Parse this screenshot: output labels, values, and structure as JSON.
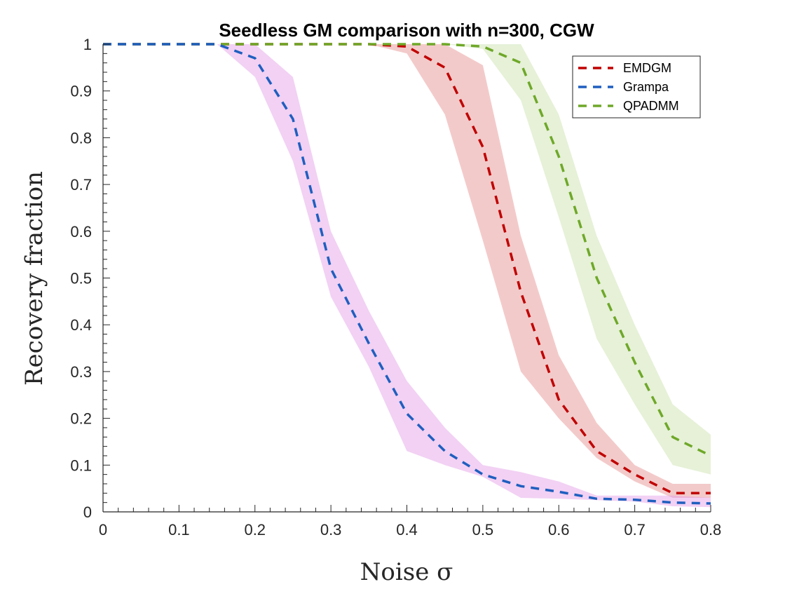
{
  "chart_data": {
    "type": "line",
    "title": "Seedless GM comparison with n=300, CGW",
    "xlabel": "Noise σ",
    "ylabel": "Recovery fraction",
    "xlim": [
      0,
      0.8
    ],
    "ylim": [
      0,
      1
    ],
    "x_ticks": [
      "0",
      "0.1",
      "0.2",
      "0.3",
      "0.4",
      "0.5",
      "0.6",
      "0.7",
      "0.8"
    ],
    "y_ticks": [
      "0",
      "0.1",
      "0.2",
      "0.3",
      "0.4",
      "0.5",
      "0.6",
      "0.7",
      "0.8",
      "0.9",
      "1"
    ],
    "grid": false,
    "legend_position": "top-right",
    "x": [
      0,
      0.05,
      0.1,
      0.15,
      0.2,
      0.25,
      0.3,
      0.35,
      0.4,
      0.45,
      0.5,
      0.55,
      0.6,
      0.65,
      0.7,
      0.75,
      0.8
    ],
    "series": [
      {
        "name": "EMDGM",
        "color": "#c00000",
        "band_color": "#e58a8a",
        "values": [
          1,
          1,
          1,
          1,
          1,
          1,
          1,
          1,
          0.995,
          0.95,
          0.78,
          0.47,
          0.24,
          0.13,
          0.08,
          0.04,
          0.04
        ],
        "lower": [
          1,
          1,
          1,
          1,
          1,
          1,
          1,
          1,
          0.98,
          0.85,
          0.58,
          0.3,
          0.2,
          0.115,
          0.065,
          0.03,
          0.03
        ],
        "upper": [
          1,
          1,
          1,
          1,
          1,
          1,
          1,
          1,
          1,
          1,
          0.955,
          0.59,
          0.335,
          0.19,
          0.1,
          0.06,
          0.06
        ]
      },
      {
        "name": "Grampa",
        "color": "#1f5fbf",
        "band_color": "#e29ae6",
        "values": [
          1,
          1,
          1,
          1,
          0.97,
          0.84,
          0.52,
          0.36,
          0.21,
          0.13,
          0.08,
          0.055,
          0.043,
          0.028,
          0.026,
          0.02,
          0.018
        ],
        "lower": [
          1,
          1,
          1,
          1,
          0.93,
          0.75,
          0.46,
          0.31,
          0.13,
          0.1,
          0.075,
          0.03,
          0.028,
          0.025,
          0.022,
          0.012,
          0.01
        ],
        "upper": [
          1,
          1,
          1,
          1,
          1,
          0.93,
          0.6,
          0.43,
          0.28,
          0.18,
          0.1,
          0.085,
          0.065,
          0.035,
          0.035,
          0.035,
          0.03
        ]
      },
      {
        "name": "QPADMM",
        "color": "#6fa829",
        "band_color": "#c8e0a8",
        "values": [
          1,
          1,
          1,
          1,
          1,
          1,
          1,
          1,
          1,
          1,
          0.995,
          0.96,
          0.76,
          0.5,
          0.32,
          0.16,
          0.12
        ],
        "lower": [
          1,
          1,
          1,
          1,
          1,
          1,
          1,
          1,
          1,
          1,
          0.99,
          0.88,
          0.63,
          0.37,
          0.23,
          0.1,
          0.08
        ],
        "upper": [
          1,
          1,
          1,
          1,
          1,
          1,
          1,
          1,
          1,
          1,
          1,
          1,
          0.85,
          0.59,
          0.4,
          0.23,
          0.165
        ]
      }
    ]
  }
}
